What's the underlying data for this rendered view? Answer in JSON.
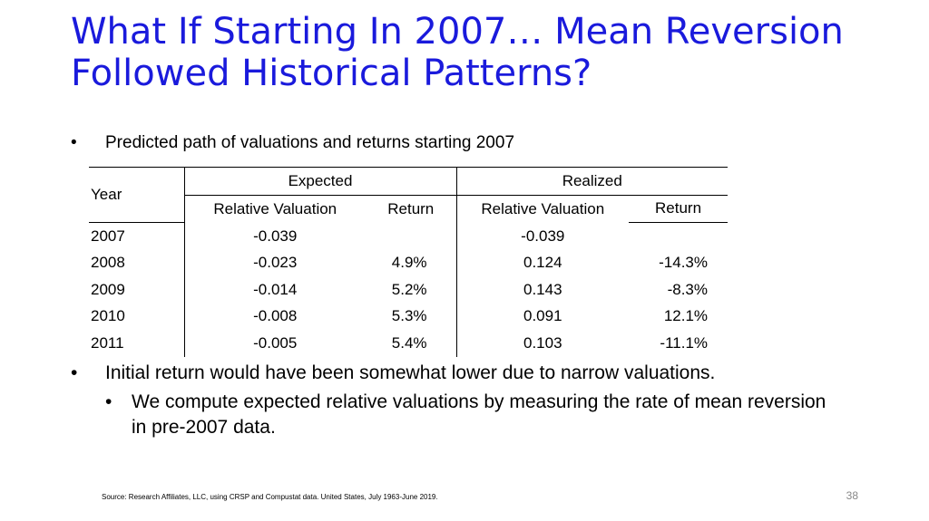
{
  "slide": {
    "title": "What If Starting In 2007… Mean Reversion Followed Historical Patterns?",
    "bullet_symbol": "•",
    "bullet1": "Predicted path of valuations and returns starting 2007",
    "bullet2": "Initial return would have been somewhat lower due to narrow valuations.",
    "bullet3": "We compute expected relative valuations by measuring the rate of mean reversion in pre-2007 data.",
    "source": "Source: Research Affiliates, LLC, using CRSP and Compustat data. United States, July 1963-June 2019.",
    "page_number": "38"
  },
  "table": {
    "year_header": "Year",
    "expected_header": "Expected",
    "realized_header": "Realized",
    "sub_rel_val": "Relative Valuation",
    "sub_return": "Return",
    "rows": [
      {
        "year": "2007",
        "exp_rel": "-0.039",
        "exp_ret": "",
        "real_rel": "-0.039",
        "real_ret": ""
      },
      {
        "year": "2008",
        "exp_rel": "-0.023",
        "exp_ret": "4.9%",
        "real_rel": "0.124",
        "real_ret": "-14.3%"
      },
      {
        "year": "2009",
        "exp_rel": "-0.014",
        "exp_ret": "5.2%",
        "real_rel": "0.143",
        "real_ret": "-8.3%"
      },
      {
        "year": "2010",
        "exp_rel": "-0.008",
        "exp_ret": "5.3%",
        "real_rel": "0.091",
        "real_ret": "12.1%"
      },
      {
        "year": "2011",
        "exp_rel": "-0.005",
        "exp_ret": "5.4%",
        "real_rel": "0.103",
        "real_ret": "-11.1%"
      }
    ]
  },
  "colors": {
    "title": "#1a1adc",
    "text": "#000000",
    "page_number": "#888888"
  }
}
